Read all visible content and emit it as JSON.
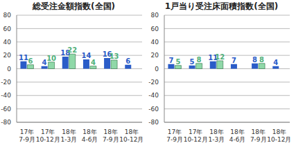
{
  "chart_data": [
    {
      "type": "bar",
      "title": "総受注金額指数(全国)",
      "categories": [
        "17年\n7-9月",
        "17年\n10-12月",
        "18年\n1-3月",
        "18年\n4-6月",
        "18年\n7-9月",
        "18年\n10-12月"
      ],
      "series": [
        {
          "color": "#2a5cc8",
          "values": [
            11,
            4,
            18,
            14,
            16,
            6
          ]
        },
        {
          "color": "#8fd8a8",
          "values": [
            6,
            10,
            22,
            4,
            13,
            null
          ]
        }
      ],
      "ylim": [
        -80,
        80
      ],
      "yticks": [
        -80,
        -60,
        -40,
        -20,
        0,
        20,
        40,
        60,
        80
      ],
      "grid": true,
      "data_labels": true
    },
    {
      "type": "bar",
      "title": "1戸当り受注床面積指数(全国)",
      "categories": [
        "17年\n7-9月",
        "17年\n10-12月",
        "18年\n1-3月",
        "18年\n4-6月",
        "18年\n7-9月",
        "18年\n10-12月"
      ],
      "series": [
        {
          "color": "#2a5cc8",
          "values": [
            7,
            5,
            11,
            7,
            8,
            4
          ]
        },
        {
          "color": "#8fd8a8",
          "values": [
            5,
            8,
            12,
            0,
            8,
            null
          ]
        }
      ],
      "ylim": [
        -80,
        80
      ],
      "yticks": [
        -80,
        -60,
        -40,
        -20,
        0,
        20,
        40,
        60,
        80
      ],
      "grid": true,
      "data_labels": true
    }
  ]
}
